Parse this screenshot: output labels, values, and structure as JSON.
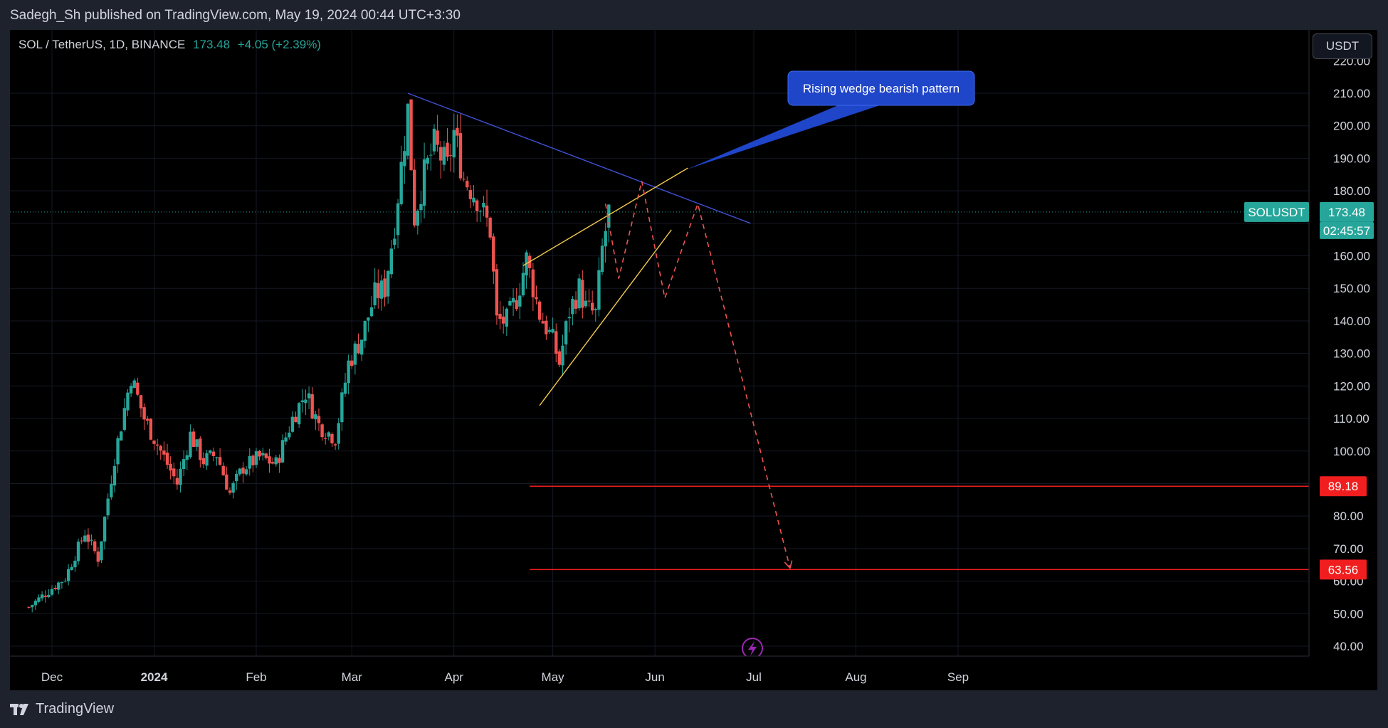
{
  "header": {
    "publisher_line": "Sadegh_Sh published on TradingView.com, May 19, 2024 00:44 UTC+3:30"
  },
  "legend": {
    "symbol": "SOL / TetherUS, 1D, BINANCE",
    "price": "173.48",
    "change": "+4.05 (+2.39%)"
  },
  "currency_button": {
    "label": "USDT"
  },
  "footer": {
    "brand": "TradingView"
  },
  "colors": {
    "background": "#000000",
    "up": "#26a69a",
    "down": "#ef5350",
    "level_line": "#f01e1e",
    "resistance_line": "#3f51d5",
    "wedge_line": "#f2c94c",
    "annotation_bg": "#1f45c9"
  },
  "chart_data": {
    "type": "candlestick",
    "symbol": "SOLUSDT",
    "timeframe": "1D",
    "exchange": "BINANCE",
    "last_price": 173.48,
    "countdown": "02:45:57",
    "ylim": [
      35,
      225
    ],
    "yticks": [
      "210.00",
      "200.00",
      "190.00",
      "180.00",
      "160.00",
      "150.00",
      "140.00",
      "130.00",
      "120.00",
      "110.00",
      "100.00",
      "80.00",
      "70.00",
      "60.00",
      "50.00",
      "40.00"
    ],
    "xticks": [
      "Dec",
      "2024",
      "Feb",
      "Mar",
      "Apr",
      "May",
      "Jun",
      "Jul",
      "Aug",
      "Sep"
    ],
    "bold_xticks": [
      "2024"
    ],
    "price_labels": [
      {
        "text": "SOLUSDT",
        "type": "symbol"
      },
      {
        "text": "173.48",
        "type": "last"
      },
      {
        "text": "02:45:57",
        "type": "countdown"
      },
      {
        "text": "89.18",
        "type": "level"
      },
      {
        "text": "63.56",
        "type": "level"
      }
    ],
    "horizontal_levels": [
      89.18,
      63.56
    ],
    "annotation": {
      "text": "Rising wedge bearish pattern"
    },
    "trendlines": [
      {
        "name": "Resistance",
        "points": [
          [
            "2024-03-18",
            210
          ],
          [
            "2024-06-30",
            170
          ]
        ]
      },
      {
        "name": "Wedge upper",
        "points": [
          [
            "2024-04-22",
            157
          ],
          [
            "2024-06-11",
            187
          ]
        ]
      },
      {
        "name": "Wedge lower",
        "points": [
          [
            "2024-04-27",
            114
          ],
          [
            "2024-06-06",
            168
          ]
        ]
      }
    ],
    "projection": [
      [
        "2024-05-17",
        176
      ],
      [
        "2024-05-21",
        153
      ],
      [
        "2024-05-28",
        183
      ],
      [
        "2024-06-04",
        147
      ],
      [
        "2024-06-14",
        176
      ],
      [
        "2024-07-12",
        64
      ]
    ],
    "anchors": [
      [
        "2023-11-24",
        52
      ],
      [
        "2023-11-30",
        57
      ],
      [
        "2023-12-05",
        61
      ],
      [
        "2023-12-11",
        75
      ],
      [
        "2023-12-15",
        67
      ],
      [
        "2023-12-20",
        98
      ],
      [
        "2023-12-25",
        123
      ],
      [
        "2023-12-29",
        110
      ],
      [
        "2024-01-03",
        100
      ],
      [
        "2024-01-08",
        90
      ],
      [
        "2024-01-12",
        105
      ],
      [
        "2024-01-16",
        97
      ],
      [
        "2024-01-20",
        99
      ],
      [
        "2024-01-24",
        87
      ],
      [
        "2024-01-28",
        95
      ],
      [
        "2024-02-02",
        98
      ],
      [
        "2024-02-07",
        96
      ],
      [
        "2024-02-12",
        110
      ],
      [
        "2024-02-16",
        118
      ],
      [
        "2024-02-20",
        108
      ],
      [
        "2024-02-25",
        104
      ],
      [
        "2024-02-29",
        127
      ],
      [
        "2024-03-04",
        135
      ],
      [
        "2024-03-08",
        148
      ],
      [
        "2024-03-11",
        150
      ],
      [
        "2024-03-14",
        170
      ],
      [
        "2024-03-18",
        205
      ],
      [
        "2024-03-20",
        172
      ],
      [
        "2024-03-23",
        185
      ],
      [
        "2024-03-26",
        194
      ],
      [
        "2024-03-30",
        187
      ],
      [
        "2024-04-01",
        198
      ],
      [
        "2024-04-04",
        184
      ],
      [
        "2024-04-08",
        178
      ],
      [
        "2024-04-12",
        168
      ],
      [
        "2024-04-14",
        140
      ],
      [
        "2024-04-17",
        140
      ],
      [
        "2024-04-20",
        147
      ],
      [
        "2024-04-23",
        159
      ],
      [
        "2024-04-27",
        142
      ],
      [
        "2024-05-01",
        134
      ],
      [
        "2024-05-03",
        127
      ],
      [
        "2024-05-06",
        143
      ],
      [
        "2024-05-09",
        150
      ],
      [
        "2024-05-11",
        144
      ],
      [
        "2024-05-14",
        142
      ],
      [
        "2024-05-16",
        162
      ],
      [
        "2024-05-18",
        173.48
      ]
    ]
  }
}
